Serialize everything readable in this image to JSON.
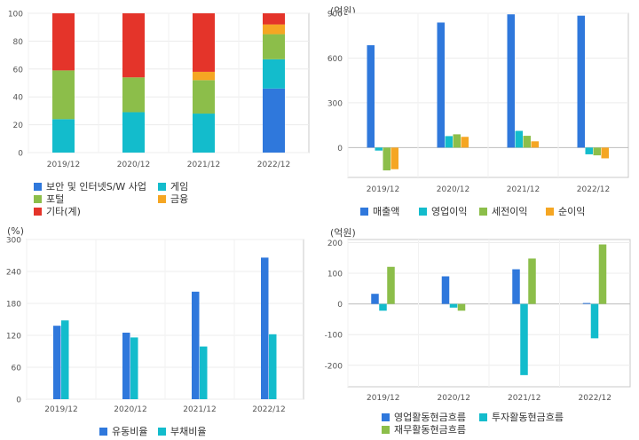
{
  "chart_data": [
    {
      "type": "bar",
      "stacked": true,
      "unit": "",
      "categories": [
        "2019/12",
        "2020/12",
        "2021/12",
        "2022/12"
      ],
      "ylim": [
        0,
        100
      ],
      "yticks": [
        0,
        20,
        40,
        60,
        80,
        100
      ],
      "grid": true,
      "legend_position": "bottom",
      "series": [
        {
          "name": "보안 및 인터넷S/W 사업",
          "color": "#2f78dc",
          "values": [
            0,
            0,
            0,
            46
          ]
        },
        {
          "name": "게임",
          "color": "#13bccc",
          "values": [
            24,
            29,
            28,
            21
          ]
        },
        {
          "name": "포털",
          "color": "#8cbe4a",
          "values": [
            35,
            25,
            24,
            18
          ]
        },
        {
          "name": "금융",
          "color": "#f5a623",
          "values": [
            0,
            0,
            6,
            7
          ]
        },
        {
          "name": "기타(계)",
          "color": "#e4342a",
          "values": [
            41,
            46,
            42,
            8
          ]
        }
      ]
    },
    {
      "type": "bar",
      "unit": "(억원)",
      "categories": [
        "2019/12",
        "2020/12",
        "2021/12",
        "2022/12"
      ],
      "ylim": [
        -200,
        900
      ],
      "yticks": [
        0,
        300,
        600,
        900
      ],
      "grid": true,
      "legend_position": "bottom",
      "series": [
        {
          "name": "매출액",
          "color": "#2f78dc",
          "values": [
            686,
            838,
            893,
            884
          ]
        },
        {
          "name": "영업이익",
          "color": "#13bccc",
          "values": [
            -20,
            77,
            112,
            -45
          ]
        },
        {
          "name": "세전이익",
          "color": "#8cbe4a",
          "values": [
            -153,
            89,
            79,
            -52
          ]
        },
        {
          "name": "순이익",
          "color": "#f5a623",
          "values": [
            -145,
            72,
            42,
            -72
          ]
        }
      ]
    },
    {
      "type": "bar",
      "unit": "(%)",
      "categories": [
        "2019/12",
        "2020/12",
        "2021/12",
        "2022/12"
      ],
      "ylim": [
        0,
        300
      ],
      "yticks": [
        0,
        60,
        120,
        180,
        240,
        300
      ],
      "grid": true,
      "legend_position": "bottom",
      "series": [
        {
          "name": "유동비율",
          "color": "#2f78dc",
          "values": [
            138,
            125,
            202,
            266
          ]
        },
        {
          "name": "부채비율",
          "color": "#13bccc",
          "values": [
            148,
            116,
            99,
            122
          ]
        }
      ]
    },
    {
      "type": "bar",
      "unit": "(억원)",
      "categories": [
        "2019/12",
        "2020/12",
        "2021/12",
        "2022/12"
      ],
      "ylim": [
        -270,
        210
      ],
      "yticks": [
        -200,
        -100,
        0,
        100,
        200
      ],
      "grid": true,
      "legend_position": "bottom",
      "series": [
        {
          "name": "영업활동현금흐름",
          "color": "#2f78dc",
          "values": [
            33,
            90,
            113,
            3
          ]
        },
        {
          "name": "투자활동현금흐름",
          "color": "#13bccc",
          "values": [
            -22,
            -12,
            -232,
            -112
          ]
        },
        {
          "name": "재무활동현금흐름",
          "color": "#8cbe4a",
          "values": [
            121,
            -22,
            148,
            194
          ]
        }
      ]
    }
  ]
}
